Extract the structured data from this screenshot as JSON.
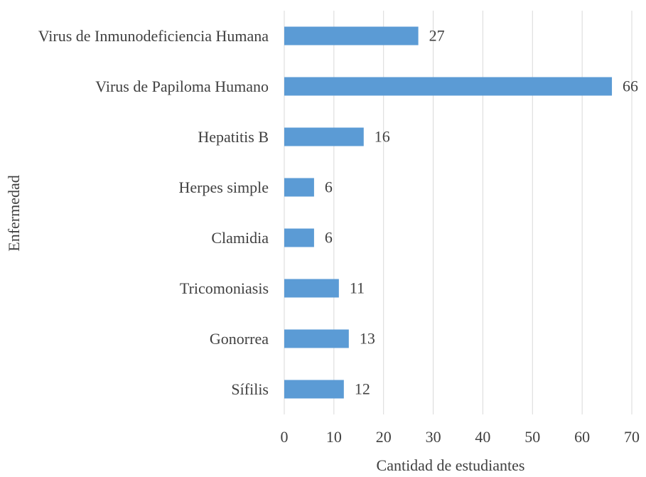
{
  "chart_data": {
    "type": "bar",
    "orientation": "horizontal",
    "categories": [
      "Virus de Inmunodeficiencia Humana",
      "Virus de Papiloma Humano",
      "Hepatitis B",
      "Herpes simple",
      "Clamidia",
      "Tricomoniasis",
      "Gonorrea",
      "Sífilis"
    ],
    "values": [
      27,
      66,
      16,
      6,
      6,
      11,
      13,
      12
    ],
    "color": "#5b9bd5",
    "xlabel": "Cantidad de estudiantes",
    "ylabel": "Enfermedad",
    "xlim": [
      0,
      70
    ],
    "xticks": [
      0,
      10,
      20,
      30,
      40,
      50,
      60,
      70
    ],
    "grid": true
  }
}
